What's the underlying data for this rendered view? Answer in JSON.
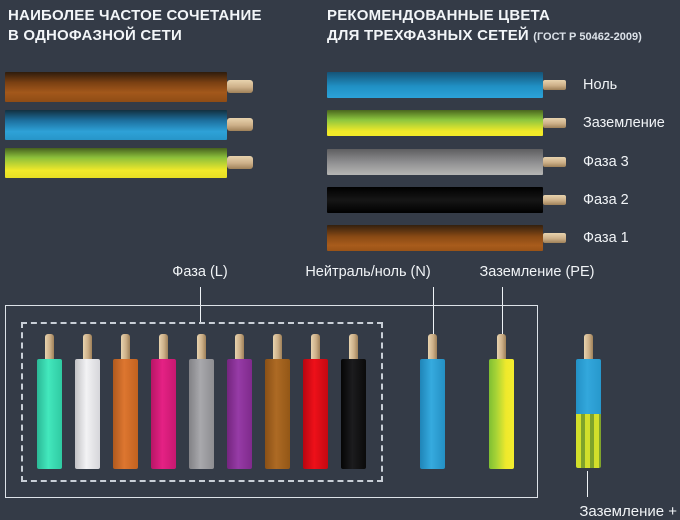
{
  "left_panel": {
    "title_line1": "НАИБОЛЕЕ ЧАСТОЕ СОЧЕТАНИЕ",
    "title_line2": "В ОДНОФАЗНОЙ СЕТИ",
    "wires": [
      {
        "name": "brown-phase",
        "color": "#a3581b",
        "stops": [
          "#2e1c0c",
          "#7a4012 35%",
          "#a3581b 68%",
          "#8f4c15"
        ]
      },
      {
        "name": "blue-neutral",
        "color": "#2ea2d8",
        "stops": [
          "#12303f",
          "#1d6f9e 35%",
          "#2ea2d8 72%",
          "#2795c8"
        ]
      },
      {
        "name": "yellow-green-earth",
        "color": "#f2e92a",
        "stops": [
          "#47611f",
          "#8cc03b 32%",
          "#f2e92a 75%",
          "#e8df24"
        ]
      }
    ]
  },
  "right_panel": {
    "title_line1": "РЕКОМЕНДОВАННЫЕ ЦВЕТА",
    "title_line2": "ДЛЯ ТРЕХФАЗНЫХ СЕТЕЙ",
    "title_note": "(ГОСТ Р 50462-2009)",
    "wires": [
      {
        "name": "blue-neutral",
        "label": "Ноль",
        "color": "#2ba2d8",
        "stops": [
          "#155377",
          "#2090c4 55%",
          "#2ba2d8"
        ]
      },
      {
        "name": "yellow-green-earth",
        "label": "Заземление",
        "color": "#f2ea28",
        "stops": [
          "#4a661e",
          "#8dc63f 38%",
          "#f2ea28 82%"
        ]
      },
      {
        "name": "gray-phase-3",
        "label": "Фаза 3",
        "color": "#9c9c9e",
        "stops": [
          "#5e5e60",
          "#8e8e90 50%",
          "#b6b6b4"
        ]
      },
      {
        "name": "black-phase-2",
        "label": "Фаза 2",
        "color": "#000000",
        "stops": [
          "#000000",
          "#161616 50%",
          "#000000"
        ]
      },
      {
        "name": "brown-phase-1",
        "label": "Фаза 1",
        "color": "#a85c1c",
        "stops": [
          "#33200e",
          "#8a4a14 45%",
          "#a85c1c 78%",
          "#9a5317"
        ]
      }
    ]
  },
  "diagram": {
    "label_phase": "Фаза (L)",
    "label_neutral": "Нейтраль/ноль (N)",
    "label_earth": "Заземление (PE)",
    "label_earth_plus": "Заземление +",
    "phase_wires": [
      {
        "name": "turquoise-phase",
        "color": "#43e8bd",
        "stops": [
          "#2bb896",
          "#43e8bd 45%",
          "#2fcaa2"
        ]
      },
      {
        "name": "white-phase",
        "color": "#f2f2f4",
        "stops": [
          "#c2c2c6",
          "#f2f2f4 45%",
          "#d6d6da"
        ]
      },
      {
        "name": "orange-phase",
        "color": "#dd7630",
        "stops": [
          "#b05a1e",
          "#dd7630 45%",
          "#c2621f"
        ]
      },
      {
        "name": "pink-phase",
        "color": "#e42184",
        "stops": [
          "#b81566",
          "#e42184 45%",
          "#c81870"
        ]
      },
      {
        "name": "gray-phase",
        "color": "#a8a8ac",
        "stops": [
          "#828286",
          "#a8a8ac 45%",
          "#8e8e92"
        ]
      },
      {
        "name": "purple-phase",
        "color": "#963ba6",
        "stops": [
          "#74257f",
          "#963ba6 45%",
          "#7f2a8c"
        ]
      },
      {
        "name": "brown-phase",
        "color": "#ad6a24",
        "stops": [
          "#8a5016",
          "#ad6a24 45%",
          "#935716"
        ]
      },
      {
        "name": "red-phase",
        "color": "#ee1019",
        "stops": [
          "#b80610",
          "#ee1019 45%",
          "#c40811"
        ]
      },
      {
        "name": "black-phase",
        "color": "#0c0c0c",
        "stops": [
          "#050505",
          "#1c1c1e 45%",
          "#0a0a0a"
        ]
      }
    ],
    "neutral_wire": {
      "name": "blue-neutral",
      "color": "#36aade",
      "stops": [
        "#1f85b8",
        "#36aade 45%",
        "#2490c4"
      ]
    },
    "earth_wire": {
      "name": "yellow-green-earth",
      "color": "#efe92c",
      "stops": [
        "#7fbf33",
        "#a8d436 30%",
        "#efe92c 68%",
        "#f4ee2e"
      ]
    },
    "combo_wire": {
      "name": "blue-yellow-green-combo",
      "blue_stops": [
        "#2391c6",
        "#33a7dc 45%",
        "#2798cc"
      ],
      "stripe_colors": [
        "#d2df2b",
        "#7fa32b"
      ]
    }
  },
  "tip_stops": [
    "#e8d3ae",
    "#cdb089 55%",
    "#9f8159"
  ],
  "colors": {
    "background": "#343b47",
    "text": "#f0f3f6",
    "line": "#eef2f6",
    "box_border": "#dde2e8"
  }
}
